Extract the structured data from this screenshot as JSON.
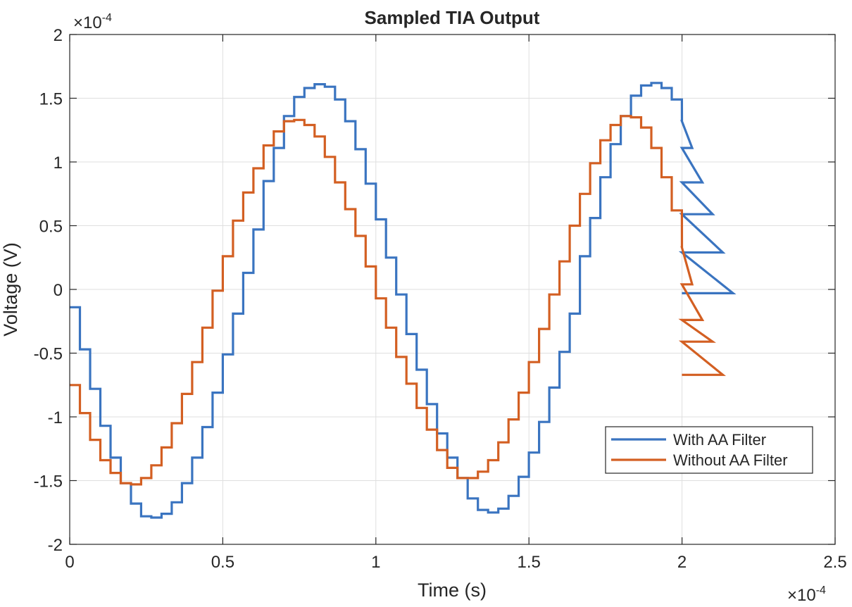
{
  "chart_data": {
    "type": "line",
    "step": true,
    "title": "Sampled TIA Output",
    "xlabel": "Time (s)",
    "ylabel": "Voltage (V)",
    "x_multiplier_label": "×10",
    "x_multiplier_exp": "-4",
    "y_multiplier_label": "×10",
    "y_multiplier_exp": "-4",
    "xlim": [
      0,
      2.5
    ],
    "ylim": [
      -2,
      2
    ],
    "x_ticks": [
      0,
      0.5,
      1,
      1.5,
      2,
      2.5
    ],
    "x_tick_labels": [
      "0",
      "0.5",
      "1",
      "1.5",
      "2",
      "2.5"
    ],
    "y_ticks": [
      2,
      1.5,
      1,
      0.5,
      0,
      -0.5,
      -1,
      -1.5,
      -2
    ],
    "y_tick_labels": [
      "2",
      "1.5",
      "1",
      "0.5",
      "0",
      "-0.5",
      "-1",
      "-1.5",
      "-2"
    ],
    "grid": true,
    "legend_position": "lower-right",
    "sample_step": 0.03333,
    "series": [
      {
        "name": "With AA Filter",
        "color": "#3a74c0",
        "values": [
          -0.14,
          -0.47,
          -0.78,
          -1.07,
          -1.32,
          -1.52,
          -1.68,
          -1.78,
          -1.79,
          -1.76,
          -1.67,
          -1.52,
          -1.32,
          -1.08,
          -0.81,
          -0.51,
          -0.19,
          0.13,
          0.47,
          0.85,
          1.11,
          1.36,
          1.51,
          1.58,
          1.61,
          1.59,
          1.49,
          1.32,
          1.1,
          0.83,
          0.55,
          0.25,
          -0.04,
          -0.35,
          -0.63,
          -0.9,
          -1.13,
          -1.32,
          -1.48,
          -1.64,
          -1.73,
          -1.75,
          -1.72,
          -1.62,
          -1.47,
          -1.28,
          -1.04,
          -0.77,
          -0.49,
          -0.19,
          0.26,
          0.56,
          0.88,
          1.14,
          1.36,
          1.52,
          1.6,
          1.62,
          1.58,
          1.49,
          1.32,
          1.11,
          0.84,
          0.59,
          0.29,
          -0.03
        ]
      },
      {
        "name": "Without AA Filter",
        "color": "#d35f22",
        "values": [
          -0.75,
          -0.97,
          -1.18,
          -1.34,
          -1.44,
          -1.52,
          -1.53,
          -1.48,
          -1.38,
          -1.24,
          -1.05,
          -0.82,
          -0.57,
          -0.3,
          -0.01,
          0.26,
          0.54,
          0.76,
          0.95,
          1.13,
          1.24,
          1.32,
          1.33,
          1.29,
          1.2,
          1.04,
          0.84,
          0.63,
          0.42,
          0.18,
          -0.07,
          -0.3,
          -0.53,
          -0.74,
          -0.93,
          -1.1,
          -1.26,
          -1.4,
          -1.48,
          -1.48,
          -1.43,
          -1.34,
          -1.2,
          -1.02,
          -0.81,
          -0.57,
          -0.31,
          -0.04,
          0.22,
          0.5,
          0.75,
          0.99,
          1.17,
          1.29,
          1.36,
          1.35,
          1.27,
          1.11,
          0.88,
          0.62,
          0.33,
          0.04,
          -0.24,
          -0.41,
          -0.67
        ]
      }
    ]
  }
}
